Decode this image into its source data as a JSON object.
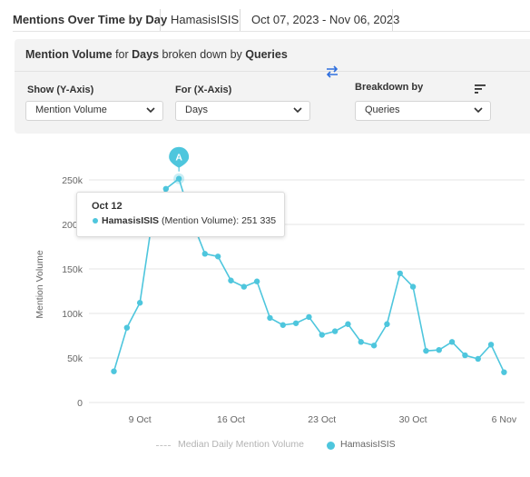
{
  "header": {
    "title": "Mentions Over Time by Day",
    "query": "HamasisISIS",
    "date_range": "Oct 07, 2023 - Nov 06, 2023"
  },
  "panel": {
    "title_prefix": "Mention Volume",
    "title_for": " for ",
    "title_days": "Days",
    "title_mid": " broken down by ",
    "title_queries": "Queries",
    "y_axis_label": "Show (Y-Axis)",
    "y_axis_value": "Mention Volume",
    "x_axis_label": "For (X-Axis)",
    "x_axis_value": "Days",
    "breakdown_label": "Breakdown by",
    "breakdown_value": "Queries"
  },
  "colors": {
    "series": "#4ec6dd",
    "accent": "#2f6fde",
    "grid": "#e6e6e6"
  },
  "tooltip": {
    "date": "Oct 12",
    "series": "HamasisISIS",
    "detail": " (Mention Volume): 251 335"
  },
  "annotation": {
    "label": "A"
  },
  "legend": {
    "median": "Median Daily Mention Volume",
    "series": "HamasisISIS"
  },
  "chart_data": {
    "type": "line",
    "ylabel": "Mention Volume",
    "ylim": [
      0,
      250000
    ],
    "yticks": [
      0,
      50000,
      100000,
      150000,
      200000,
      250000
    ],
    "yticklabels": [
      "0",
      "50k",
      "100k",
      "150k",
      "200k",
      "250k"
    ],
    "xticks": [
      "2023-10-09",
      "2023-10-16",
      "2023-10-23",
      "2023-10-30",
      "2023-11-06"
    ],
    "xticklabels": [
      "9 Oct",
      "16 Oct",
      "23 Oct",
      "30 Oct",
      "6 Nov"
    ],
    "grid": true,
    "legend_position": "bottom",
    "series": [
      {
        "name": "HamasisISIS",
        "x": [
          "2023-10-07",
          "2023-10-08",
          "2023-10-09",
          "2023-10-10",
          "2023-10-11",
          "2023-10-12",
          "2023-10-13",
          "2023-10-14",
          "2023-10-15",
          "2023-10-16",
          "2023-10-17",
          "2023-10-18",
          "2023-10-19",
          "2023-10-20",
          "2023-10-21",
          "2023-10-22",
          "2023-10-23",
          "2023-10-24",
          "2023-10-25",
          "2023-10-26",
          "2023-10-27",
          "2023-10-28",
          "2023-10-29",
          "2023-10-30",
          "2023-10-31",
          "2023-11-01",
          "2023-11-02",
          "2023-11-03",
          "2023-11-04",
          "2023-11-05",
          "2023-11-06"
        ],
        "values": [
          35000,
          84000,
          112000,
          210000,
          240000,
          251335,
          204000,
          167000,
          164000,
          137000,
          130000,
          136000,
          95000,
          87000,
          89000,
          96000,
          76000,
          80000,
          88000,
          68000,
          64000,
          88000,
          145000,
          130000,
          58000,
          59000,
          68000,
          53000,
          49000,
          65000,
          34000
        ]
      }
    ]
  }
}
